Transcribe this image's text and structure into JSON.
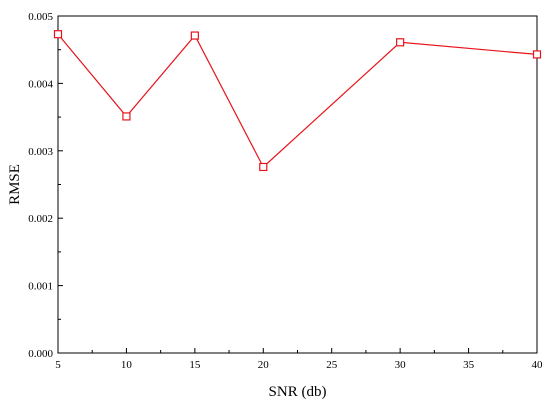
{
  "chart_data": {
    "type": "line",
    "title": "",
    "xlabel": "SNR (db)",
    "ylabel": "RMSE",
    "xlim": [
      5,
      40
    ],
    "ylim": [
      0,
      0.005
    ],
    "x_ticks": [
      5,
      10,
      15,
      20,
      25,
      30,
      35,
      40
    ],
    "x_tick_labels": [
      "5",
      "10",
      "15",
      "20",
      "25",
      "30",
      "35",
      "40"
    ],
    "y_ticks": [
      0,
      0.001,
      0.002,
      0.003,
      0.004,
      0.005
    ],
    "y_tick_labels": [
      "0.000",
      "0.001",
      "0.002",
      "0.003",
      "0.004",
      "0.005"
    ],
    "grid": false,
    "legend": "none",
    "series": [
      {
        "color": "#e8141b",
        "marker": "square",
        "x": [
          5,
          10,
          15,
          20,
          30,
          40
        ],
        "y": [
          0.00473,
          0.00351,
          0.00471,
          0.00276,
          0.00461,
          0.00443
        ]
      }
    ]
  }
}
